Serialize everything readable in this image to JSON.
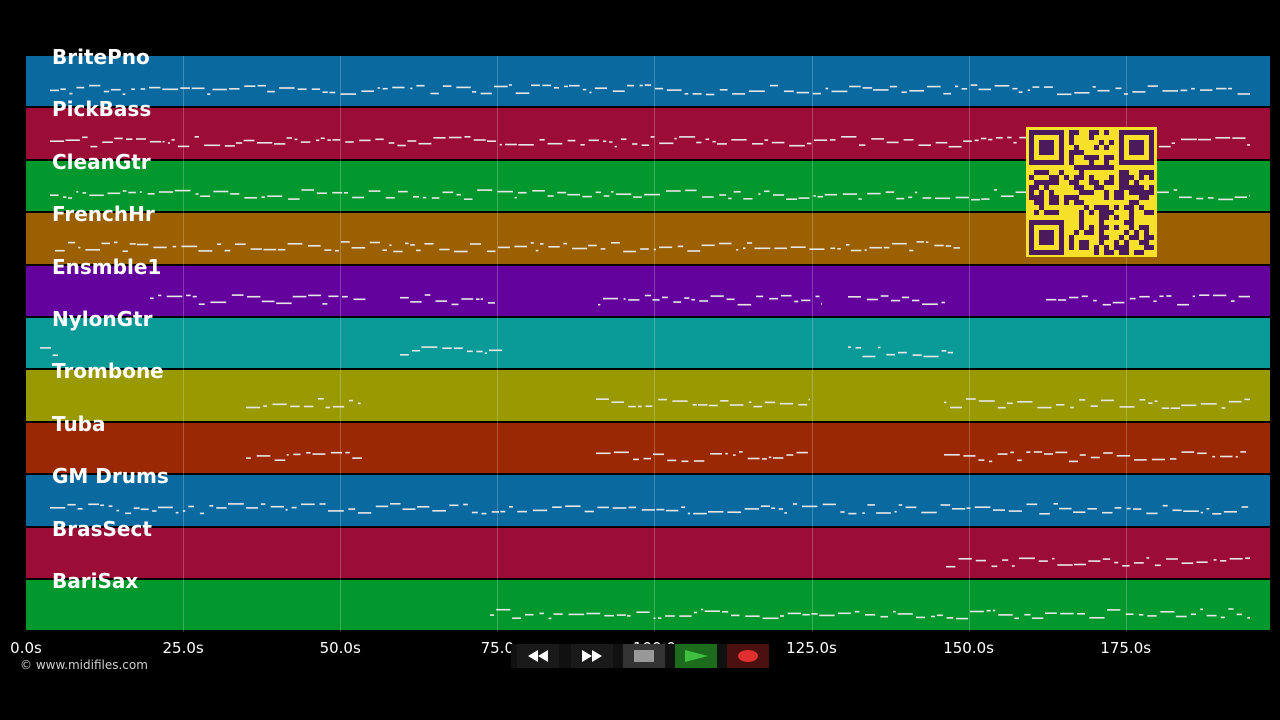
{
  "tracks": [
    {
      "name": "BritePno",
      "color": "#0a6aa0"
    },
    {
      "name": "PickBass",
      "color": "#9b0d36"
    },
    {
      "name": "CleanGtr",
      "color": "#02982e"
    },
    {
      "name": "FrenchHr",
      "color": "#9a6002"
    },
    {
      "name": "Ensmble1",
      "color": "#63029c"
    },
    {
      "name": "NylonGtr",
      "color": "#0a9a98"
    },
    {
      "name": "Trombone",
      "color": "#999a02"
    },
    {
      "name": "Tuba",
      "color": "#9a2802"
    },
    {
      "name": "GM Drums",
      "color": "#0a6aa0"
    },
    {
      "name": "BrasSect",
      "color": "#9b0d36"
    },
    {
      "name": "BariSax",
      "color": "#02982e"
    }
  ],
  "timeline": {
    "ticks": [
      "0.0s",
      "25.0s",
      "50.0s",
      "75.0",
      "100.0",
      "125.0s",
      "150.0s",
      "175.0s"
    ]
  },
  "copyright": "© www.midifiles.com",
  "transport": {
    "rewind_icon": "rewind-icon",
    "fast_forward_icon": "fast-forward-icon",
    "stop_icon": "stop-icon",
    "play_icon": "play-icon",
    "record_icon": "record-icon"
  },
  "overlay": {
    "qr_code": "qr-code-icon",
    "qr_background": "#f7e02a",
    "qr_foreground": "#4b1a5c"
  }
}
